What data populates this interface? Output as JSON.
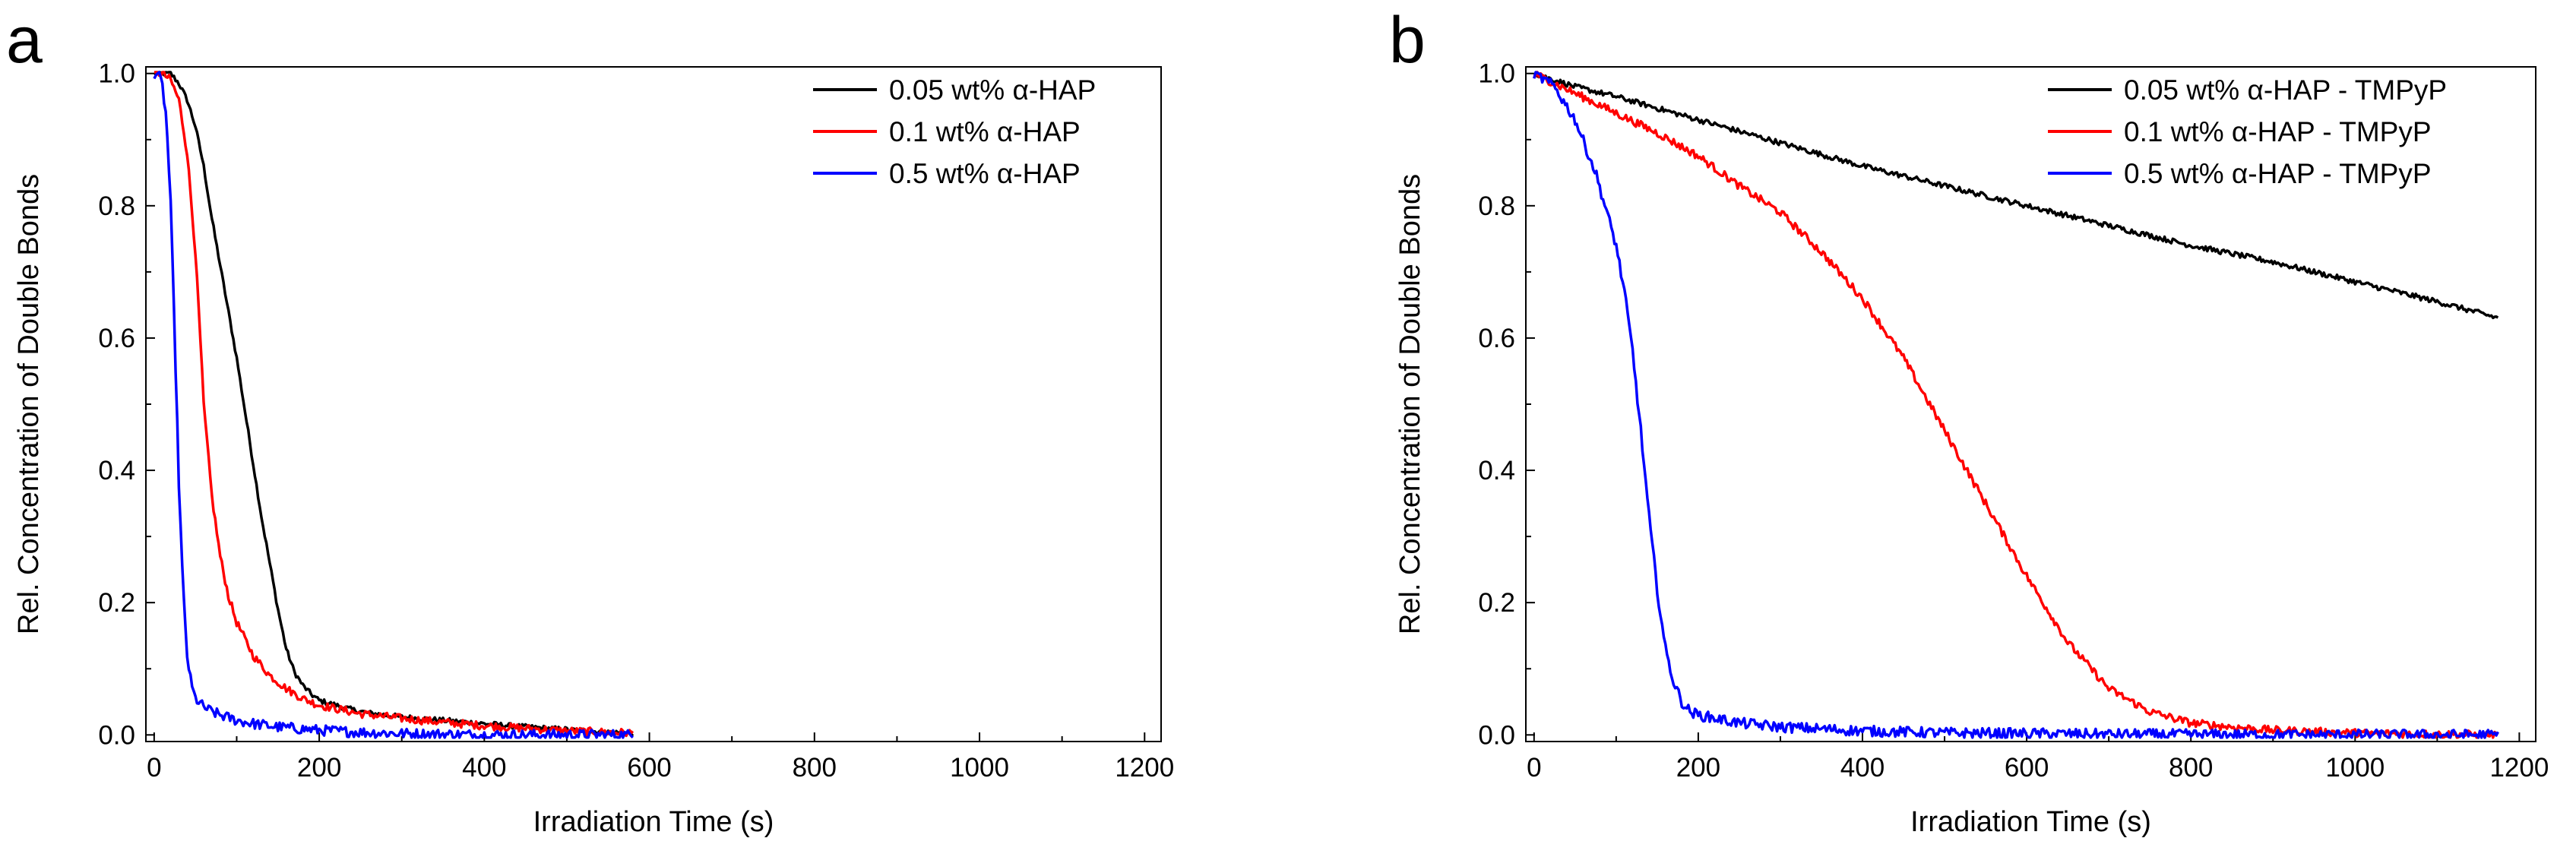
{
  "chart_data": [
    {
      "panel": "a",
      "type": "line",
      "xlabel": "Irradiation Time (s)",
      "ylabel": "Rel. Concentration of Double Bonds",
      "xlim": [
        -10,
        1220
      ],
      "ylim": [
        -0.01,
        1.01
      ],
      "xticks": [
        "0",
        "200",
        "400",
        "600",
        "800",
        "1000",
        "1200"
      ],
      "yticks": [
        "0.0",
        "0.2",
        "0.4",
        "0.6",
        "0.8",
        "1.0"
      ],
      "legend_position": "top-right",
      "series": [
        {
          "name": "0.05 wt% α-HAP",
          "color": "#000000",
          "x": [
            0,
            10,
            20,
            30,
            40,
            50,
            60,
            70,
            80,
            90,
            100,
            110,
            120,
            130,
            140,
            150,
            160,
            170,
            180,
            190,
            200,
            220,
            240,
            260,
            280,
            300,
            350,
            400,
            450,
            500,
            550,
            580
          ],
          "y": [
            1.0,
            1.0,
            1.0,
            0.985,
            0.96,
            0.92,
            0.86,
            0.78,
            0.71,
            0.64,
            0.57,
            0.49,
            0.41,
            0.33,
            0.26,
            0.19,
            0.13,
            0.095,
            0.075,
            0.062,
            0.052,
            0.045,
            0.038,
            0.033,
            0.03,
            0.027,
            0.022,
            0.017,
            0.012,
            0.008,
            0.004,
            0.002
          ]
        },
        {
          "name": "0.1 wt% α-HAP",
          "color": "#ff0000",
          "x": [
            0,
            10,
            20,
            30,
            40,
            50,
            55,
            60,
            70,
            80,
            90,
            100,
            120,
            140,
            160,
            180,
            200,
            250,
            300,
            350,
            400,
            450,
            500,
            550,
            580
          ],
          "y": [
            1.0,
            1.0,
            0.99,
            0.96,
            0.88,
            0.73,
            0.62,
            0.5,
            0.36,
            0.27,
            0.21,
            0.17,
            0.12,
            0.09,
            0.07,
            0.055,
            0.045,
            0.032,
            0.025,
            0.019,
            0.014,
            0.01,
            0.006,
            0.004,
            0.003
          ]
        },
        {
          "name": "0.5 wt% α-HAP",
          "color": "#0000ff",
          "x": [
            0,
            5,
            10,
            15,
            20,
            25,
            30,
            35,
            40,
            45,
            50,
            60,
            70,
            80,
            100,
            120,
            150,
            200,
            250,
            300,
            400,
            500,
            580
          ],
          "y": [
            1.0,
            1.0,
            0.98,
            0.93,
            0.8,
            0.6,
            0.38,
            0.22,
            0.12,
            0.075,
            0.055,
            0.042,
            0.035,
            0.03,
            0.022,
            0.017,
            0.012,
            0.007,
            0.004,
            0.002,
            0.0,
            0.0,
            0.0
          ]
        }
      ]
    },
    {
      "panel": "b",
      "type": "line",
      "xlabel": "Irradiation Time (s)",
      "ylabel": "Rel. Concentration of Double Bonds",
      "xlim": [
        -10,
        1220
      ],
      "ylim": [
        -0.01,
        1.01
      ],
      "xticks": [
        "0",
        "200",
        "400",
        "600",
        "800",
        "1000",
        "1200"
      ],
      "yticks": [
        "0.0",
        "0.2",
        "0.4",
        "0.6",
        "0.8",
        "1.0"
      ],
      "legend_position": "top-right",
      "series": [
        {
          "name": "0.05 wt% α-HAP - TMPyP",
          "color": "#000000",
          "x": [
            0,
            50,
            100,
            200,
            300,
            400,
            500,
            600,
            700,
            800,
            900,
            1000,
            1100,
            1175
          ],
          "y": [
            1.0,
            0.98,
            0.965,
            0.93,
            0.895,
            0.86,
            0.83,
            0.8,
            0.77,
            0.74,
            0.715,
            0.685,
            0.655,
            0.63
          ]
        },
        {
          "name": "0.1 wt% α-HAP - TMPyP",
          "color": "#ff0000",
          "x": [
            0,
            50,
            100,
            150,
            200,
            250,
            300,
            350,
            400,
            450,
            500,
            550,
            600,
            650,
            700,
            750,
            800,
            850,
            900,
            1000,
            1100,
            1175
          ],
          "y": [
            1.0,
            0.97,
            0.94,
            0.91,
            0.875,
            0.83,
            0.79,
            0.73,
            0.66,
            0.57,
            0.46,
            0.35,
            0.24,
            0.14,
            0.07,
            0.035,
            0.018,
            0.012,
            0.007,
            0.003,
            0.001,
            0.0
          ]
        },
        {
          "name": "0.5 wt% α-HAP - TMPyP",
          "color": "#0000ff",
          "x": [
            0,
            25,
            50,
            75,
            100,
            110,
            120,
            130,
            140,
            150,
            160,
            170,
            180,
            190,
            200,
            250,
            300,
            400,
            500,
            700,
            900,
            1175
          ],
          "y": [
            1.0,
            0.98,
            0.93,
            0.85,
            0.74,
            0.67,
            0.58,
            0.46,
            0.33,
            0.22,
            0.13,
            0.08,
            0.05,
            0.035,
            0.03,
            0.018,
            0.012,
            0.006,
            0.003,
            0.001,
            0.0,
            0.0
          ]
        }
      ]
    }
  ]
}
